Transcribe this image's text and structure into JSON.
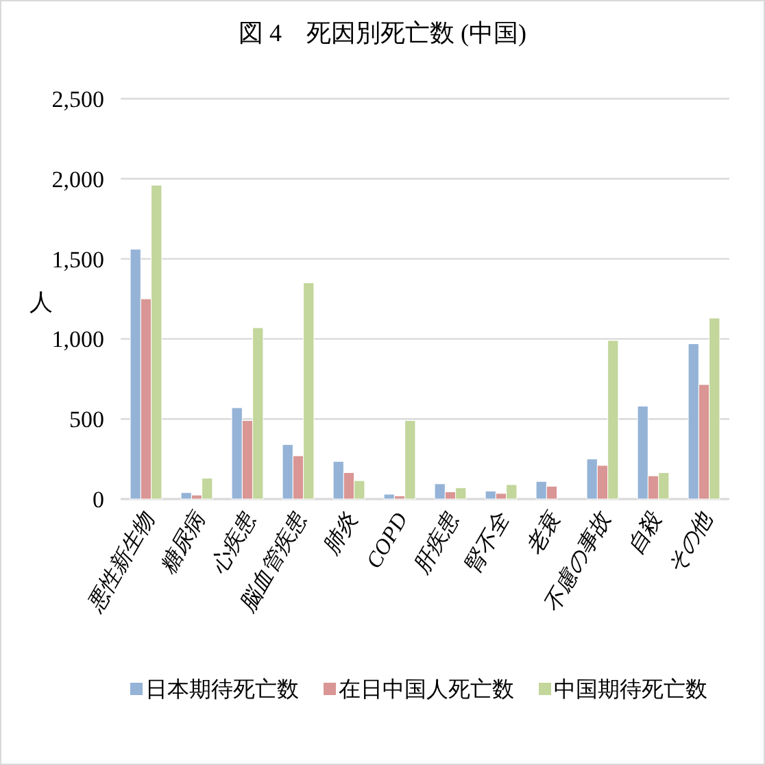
{
  "chart_data": {
    "type": "bar",
    "title": "図 4　死因別死亡数 (中国)",
    "ylabel": "人",
    "categories": [
      "悪性新生物",
      "糖尿病",
      "心疾患",
      "脳血管疾患",
      "肺炎",
      "COPD",
      "肝疾患",
      "腎不全",
      "老衰",
      "不慮の事故",
      "自殺",
      "その他"
    ],
    "series": [
      {
        "name": "日本期待死亡数",
        "color": "#95b3d7",
        "values": [
          1560,
          40,
          570,
          340,
          235,
          30,
          95,
          50,
          110,
          250,
          580,
          970
        ]
      },
      {
        "name": "在日中国人死亡数",
        "color": "#d99694",
        "values": [
          1250,
          25,
          490,
          270,
          165,
          20,
          45,
          35,
          80,
          210,
          145,
          715
        ]
      },
      {
        "name": "中国期待死亡数",
        "color": "#c3d69b",
        "values": [
          1960,
          130,
          1070,
          1350,
          115,
          490,
          70,
          90,
          0,
          990,
          165,
          1130
        ]
      }
    ],
    "ylim": [
      0,
      2500
    ],
    "yticks": [
      {
        "value": 0,
        "label": "0"
      },
      {
        "value": 500,
        "label": "500"
      },
      {
        "value": 1000,
        "label": "1,000"
      },
      {
        "value": 1500,
        "label": "1,500"
      },
      {
        "value": 2000,
        "label": "2,000"
      },
      {
        "value": 2500,
        "label": "2,500"
      }
    ],
    "grid": "y",
    "legend": "bottom"
  }
}
